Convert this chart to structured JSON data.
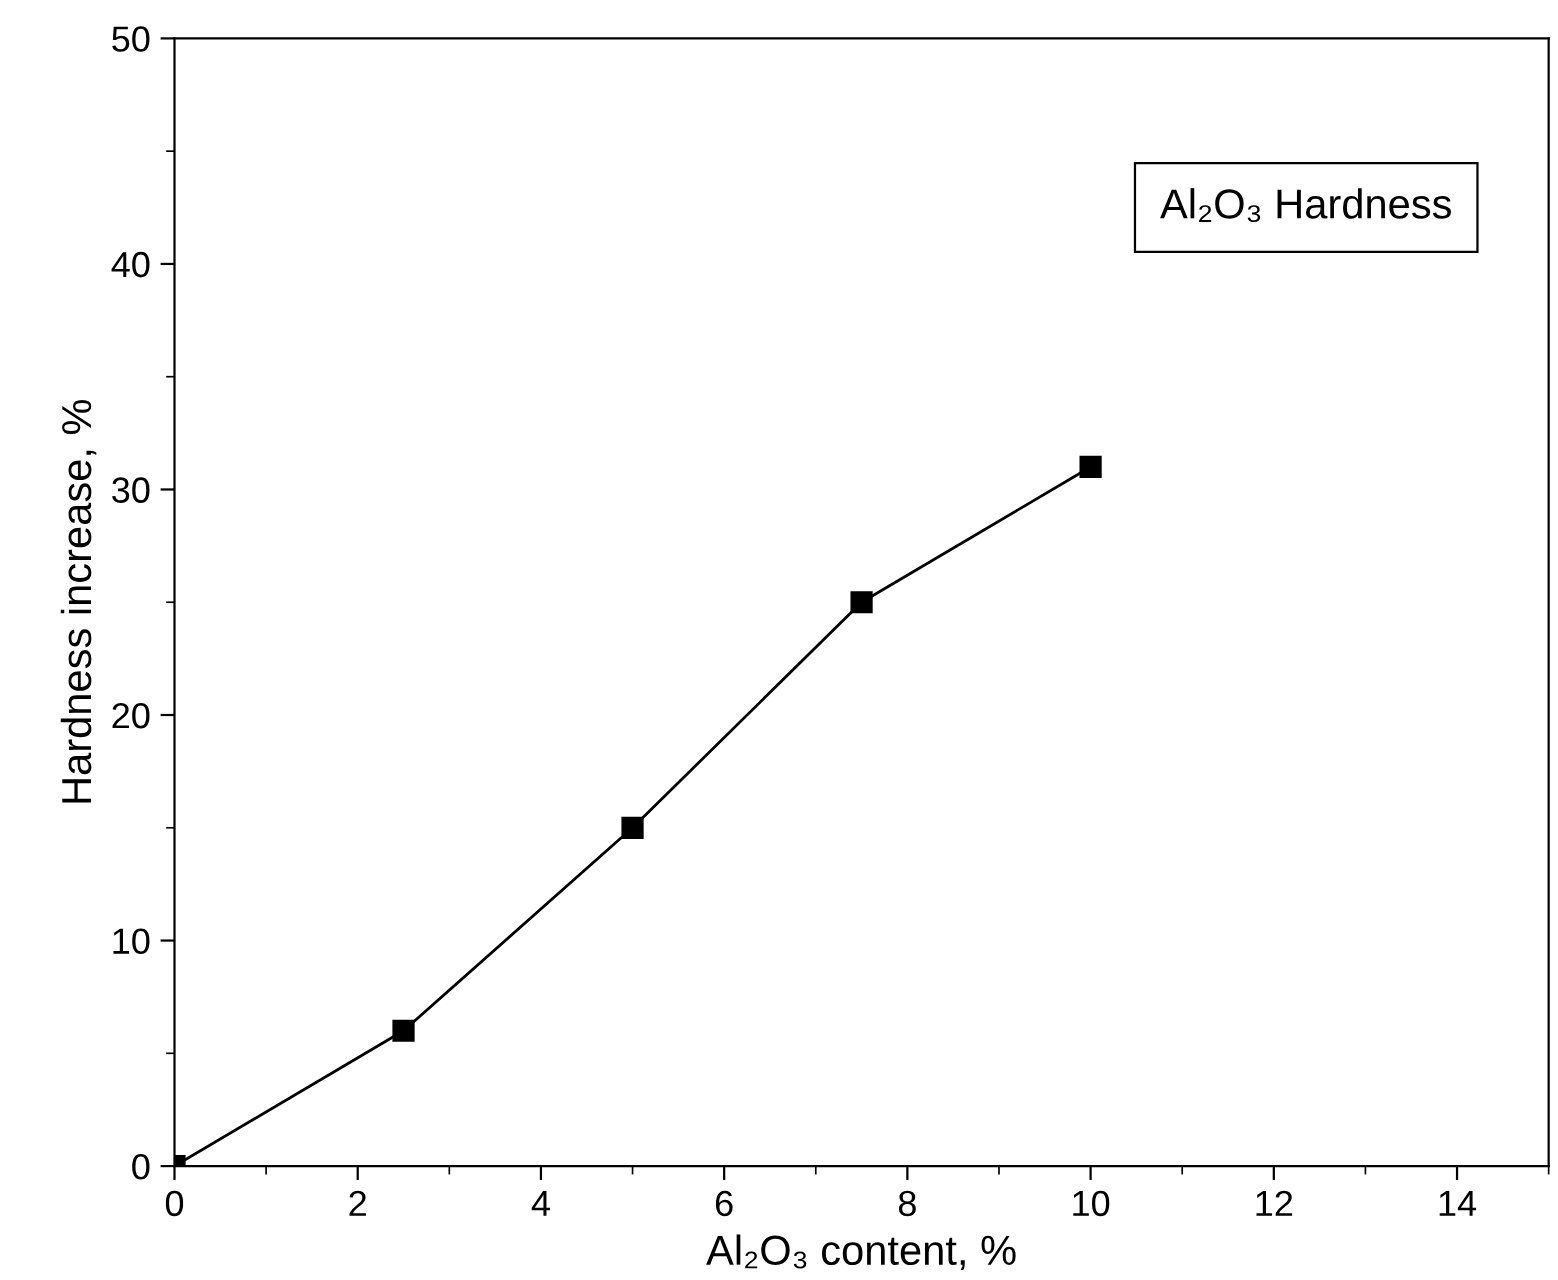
{
  "chart_data": {
    "type": "line",
    "xlabel": "Al₂O₃ content, %",
    "ylabel": "Hardness increase, %",
    "x": [
      0,
      2.5,
      5,
      7.5,
      10
    ],
    "series": [
      {
        "color": "#000000",
        "values": [
          0,
          6,
          15,
          25,
          31
        ]
      }
    ],
    "marker": "square",
    "line_style": "solid",
    "xlim": [
      0,
      15
    ],
    "xticks": [
      0,
      2,
      4,
      6,
      8,
      10,
      12,
      14
    ],
    "ylim": [
      0,
      50
    ],
    "yticks": [
      0,
      10,
      20,
      30,
      40,
      50
    ],
    "annotations": [
      "Al₂O₃ Hardness"
    ]
  }
}
